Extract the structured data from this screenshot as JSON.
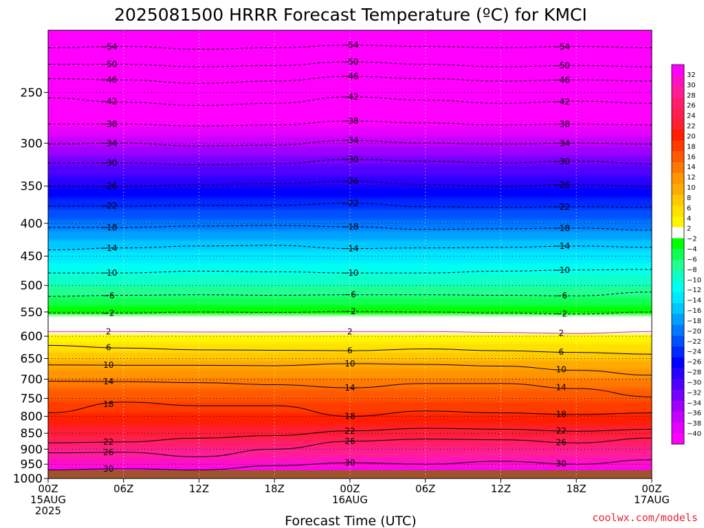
{
  "title": "2025081500 HRRR Forecast Temperature (ºC) for KMCI",
  "credit": "coolwx.com/models",
  "chart_data": {
    "type": "time-height contour",
    "title": "2025081500 HRRR Forecast Temperature (ºC) for KMCI",
    "xlabel": "Forecast Time (UTC)",
    "ylabel": "",
    "x_ticks": [
      {
        "hour": 0,
        "lines": [
          "00Z",
          "15AUG",
          "2025"
        ]
      },
      {
        "hour": 6,
        "lines": [
          "06Z"
        ]
      },
      {
        "hour": 12,
        "lines": [
          "12Z"
        ]
      },
      {
        "hour": 18,
        "lines": [
          "18Z"
        ]
      },
      {
        "hour": 24,
        "lines": [
          "00Z",
          "16AUG"
        ]
      },
      {
        "hour": 30,
        "lines": [
          "06Z"
        ]
      },
      {
        "hour": 36,
        "lines": [
          "12Z"
        ]
      },
      {
        "hour": 42,
        "lines": [
          "18Z"
        ]
      },
      {
        "hour": 48,
        "lines": [
          "00Z",
          "17AUG"
        ]
      }
    ],
    "x_range_hours": [
      0,
      48
    ],
    "y_ticks": [
      250,
      300,
      350,
      400,
      450,
      500,
      550,
      600,
      650,
      700,
      750,
      800,
      850,
      900,
      950,
      1000
    ],
    "y_range_hPa": [
      200,
      1000
    ],
    "y_scale": "log",
    "surface_pressure_hPa": 970,
    "grid": true,
    "colorbar": {
      "levels": [
        32,
        30,
        28,
        26,
        24,
        22,
        20,
        18,
        16,
        14,
        12,
        10,
        8,
        6,
        4,
        2,
        -2,
        -4,
        -6,
        -8,
        -10,
        -12,
        -14,
        -16,
        -18,
        -20,
        -22,
        -24,
        -26,
        -28,
        -30,
        -32,
        -34,
        -36,
        -38,
        -40
      ],
      "colors": [
        "#ff00ff",
        "#ff10c8",
        "#ff1e96",
        "#ff1e6e",
        "#ff1e4e",
        "#ff1e32",
        "#ff1e00",
        "#ff3c00",
        "#ff5a00",
        "#ff7800",
        "#ff9600",
        "#ffaa00",
        "#ffc800",
        "#ffe000",
        "#fff500",
        "#ffffff",
        "#00ff00",
        "#10ff50",
        "#20ff90",
        "#10ffc8",
        "#00fff0",
        "#00e8ff",
        "#00c8ff",
        "#00a0ff",
        "#0078ff",
        "#0050ff",
        "#0028ff",
        "#0000ff",
        "#2800ff",
        "#5000ff",
        "#7800ff",
        "#a000ff",
        "#c800ff",
        "#e600ff",
        "#ff00ff"
      ]
    },
    "contours": [
      {
        "value": -54,
        "style": "dashed",
        "pressure": [
          213,
          212,
          214,
          213,
          211,
          212,
          213,
          212,
          213
        ]
      },
      {
        "value": -50,
        "style": "dashed",
        "pressure": [
          226,
          226,
          228,
          227,
          224,
          226,
          228,
          227,
          228
        ]
      },
      {
        "value": -46,
        "style": "dashed",
        "pressure": [
          238,
          239,
          242,
          240,
          236,
          238,
          240,
          239,
          240
        ]
      },
      {
        "value": -42,
        "style": "dashed",
        "pressure": [
          255,
          259,
          262,
          260,
          254,
          257,
          260,
          258,
          260
        ]
      },
      {
        "value": -38,
        "style": "dashed",
        "pressure": [
          280,
          280,
          282,
          281,
          277,
          279,
          281,
          280,
          281
        ]
      },
      {
        "value": -34,
        "style": "dashed",
        "pressure": [
          301,
          300,
          303,
          302,
          297,
          300,
          301,
          300,
          301
        ]
      },
      {
        "value": -30,
        "style": "dashed",
        "pressure": [
          322,
          322,
          324,
          323,
          318,
          320,
          322,
          320,
          323
        ]
      },
      {
        "value": -26,
        "style": "dashed",
        "pressure": [
          350,
          350,
          348,
          347,
          344,
          348,
          350,
          348,
          350
        ]
      },
      {
        "value": -22,
        "style": "dashed",
        "pressure": [
          376,
          376,
          375,
          375,
          372,
          377,
          378,
          377,
          378
        ]
      },
      {
        "value": -18,
        "style": "dashed",
        "pressure": [
          406,
          406,
          404,
          403,
          405,
          409,
          408,
          407,
          410
        ]
      },
      {
        "value": -14,
        "style": "dashed",
        "pressure": [
          440,
          437,
          434,
          433,
          438,
          437,
          436,
          434,
          436
        ]
      },
      {
        "value": -10,
        "style": "dashed",
        "pressure": [
          478,
          478,
          475,
          476,
          478,
          478,
          475,
          473,
          472
        ]
      },
      {
        "value": -6,
        "style": "dashed",
        "pressure": [
          520,
          518,
          517,
          518,
          517,
          517,
          518,
          519,
          512
        ]
      },
      {
        "value": -2,
        "style": "dashed",
        "pressure": [
          552,
          552,
          550,
          551,
          549,
          550,
          552,
          554,
          550
        ]
      },
      {
        "value": 2,
        "style": "solid",
        "pressure": [
          590,
          590,
          591,
          591,
          590,
          590,
          592,
          594,
          590
        ]
      },
      {
        "value": 6,
        "style": "solid",
        "pressure": [
          620,
          626,
          630,
          631,
          632,
          628,
          632,
          636,
          640
        ]
      },
      {
        "value": 10,
        "style": "solid",
        "pressure": [
          665,
          666,
          666,
          667,
          662,
          664,
          668,
          678,
          690
        ]
      },
      {
        "value": 14,
        "style": "solid",
        "pressure": [
          705,
          706,
          709,
          714,
          722,
          711,
          711,
          724,
          746
        ]
      },
      {
        "value": 18,
        "style": "solid",
        "pressure": [
          790,
          760,
          770,
          770,
          800,
          785,
          790,
          795,
          790
        ]
      },
      {
        "value": 22,
        "style": "solid",
        "pressure": [
          880,
          877,
          865,
          857,
          843,
          835,
          838,
          844,
          838
        ]
      },
      {
        "value": 26,
        "style": "solid",
        "pressure": [
          912,
          910,
          925,
          900,
          875,
          868,
          870,
          880,
          865
        ]
      },
      {
        "value": 30,
        "style": "solid",
        "pressure": [
          970,
          965,
          970,
          955,
          945,
          950,
          940,
          950,
          935
        ]
      }
    ]
  }
}
